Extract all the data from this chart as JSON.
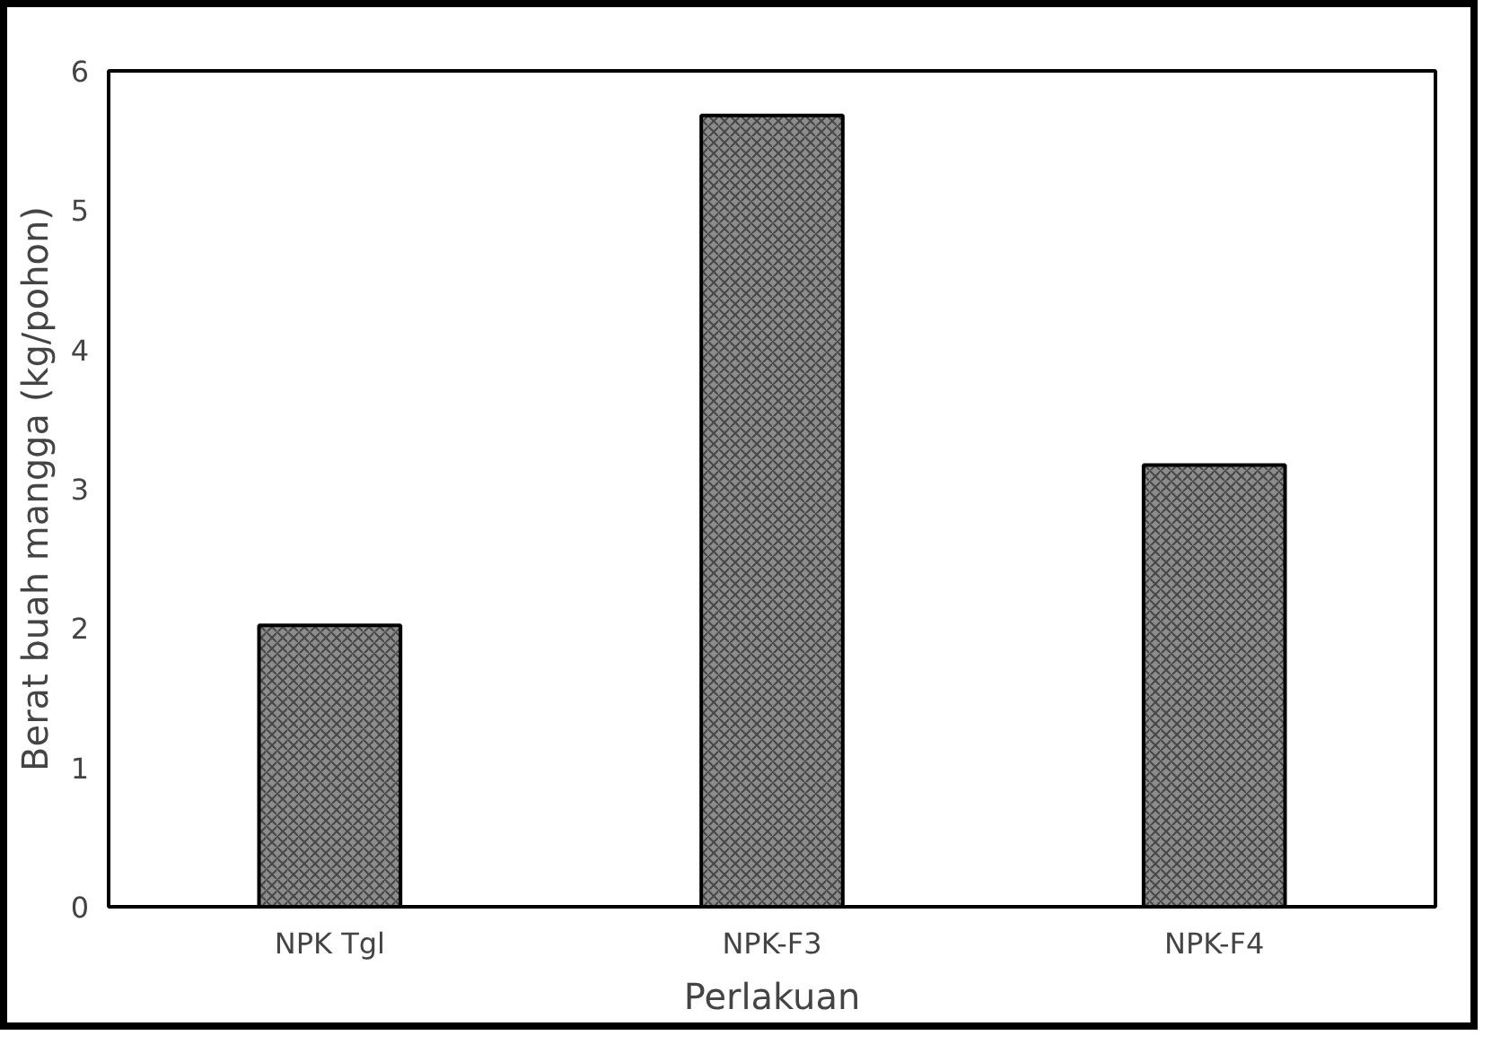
{
  "chart_data": {
    "type": "bar",
    "xlabel": "Perlakuan",
    "ylabel": "Berat buah mangga (kg/pohon)",
    "categories": [
      "NPK Tgl",
      "NPK-F3",
      "NPK-F4"
    ],
    "values": [
      2.02,
      5.68,
      3.17
    ],
    "color": "#8c8c8c",
    "ylim": [
      0,
      6
    ],
    "yticks": [
      0,
      1,
      2,
      3,
      4,
      5,
      6
    ],
    "grid": false
  }
}
